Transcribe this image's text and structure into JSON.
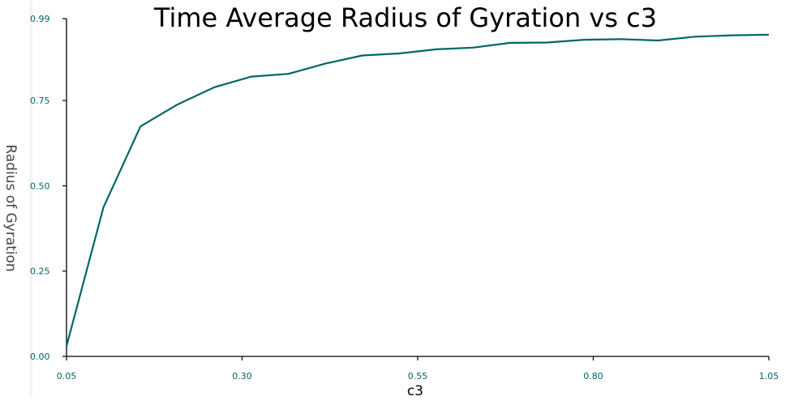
{
  "chart_data": {
    "type": "line",
    "title": "Time Average Radius of Gyration vs c3",
    "xlabel": "c3",
    "ylabel": "Radius of Gyration",
    "xlim": [
      0.05,
      1.05
    ],
    "ylim": [
      0.0,
      0.99
    ],
    "xticks": [
      "0.05",
      "0.30",
      "0.55",
      "0.80",
      "1.05"
    ],
    "yticks": [
      "0.00",
      "0.25",
      "0.50",
      "0.75",
      "0.99"
    ],
    "grid": false,
    "series": [
      {
        "x": [
          0.05,
          0.1026,
          0.1553,
          0.2079,
          0.2605,
          0.3132,
          0.3658,
          0.4184,
          0.4711,
          0.5237,
          0.5763,
          0.6289,
          0.6816,
          0.7342,
          0.7868,
          0.8395,
          0.8921,
          0.9447,
          0.9974,
          1.05
        ],
        "y": [
          0.03,
          0.437,
          0.674,
          0.738,
          0.789,
          0.82,
          0.828,
          0.858,
          0.882,
          0.888,
          0.9,
          0.905,
          0.919,
          0.92,
          0.928,
          0.93,
          0.926,
          0.937,
          0.941,
          0.943
        ],
        "color": "#006666"
      }
    ],
    "colors": {
      "line": "#006666",
      "axis": "#000000",
      "tick_label": "#006666"
    }
  }
}
